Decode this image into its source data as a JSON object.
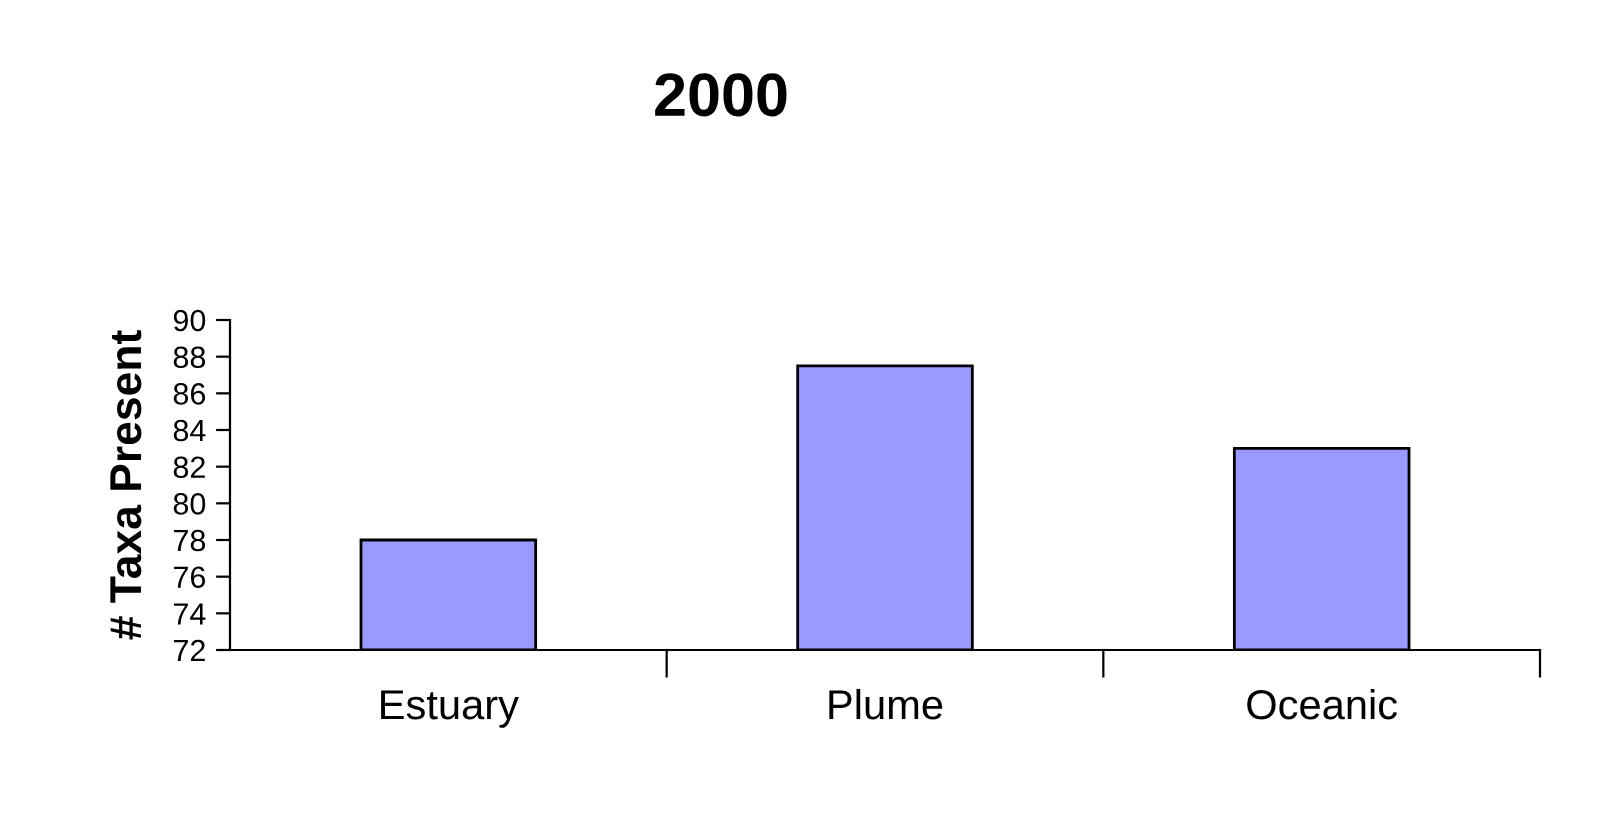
{
  "chart_data": {
    "type": "bar",
    "title": "2000",
    "ylabel": "# Taxa Present",
    "categories": [
      "Estuary",
      "Plume",
      "Oceanic"
    ],
    "values": [
      78,
      87.5,
      83
    ],
    "color": "#9999ff",
    "ylim": [
      72,
      90
    ],
    "yticks": [
      72,
      74,
      76,
      78,
      80,
      82,
      84,
      86,
      88,
      90
    ],
    "grid": false
  }
}
